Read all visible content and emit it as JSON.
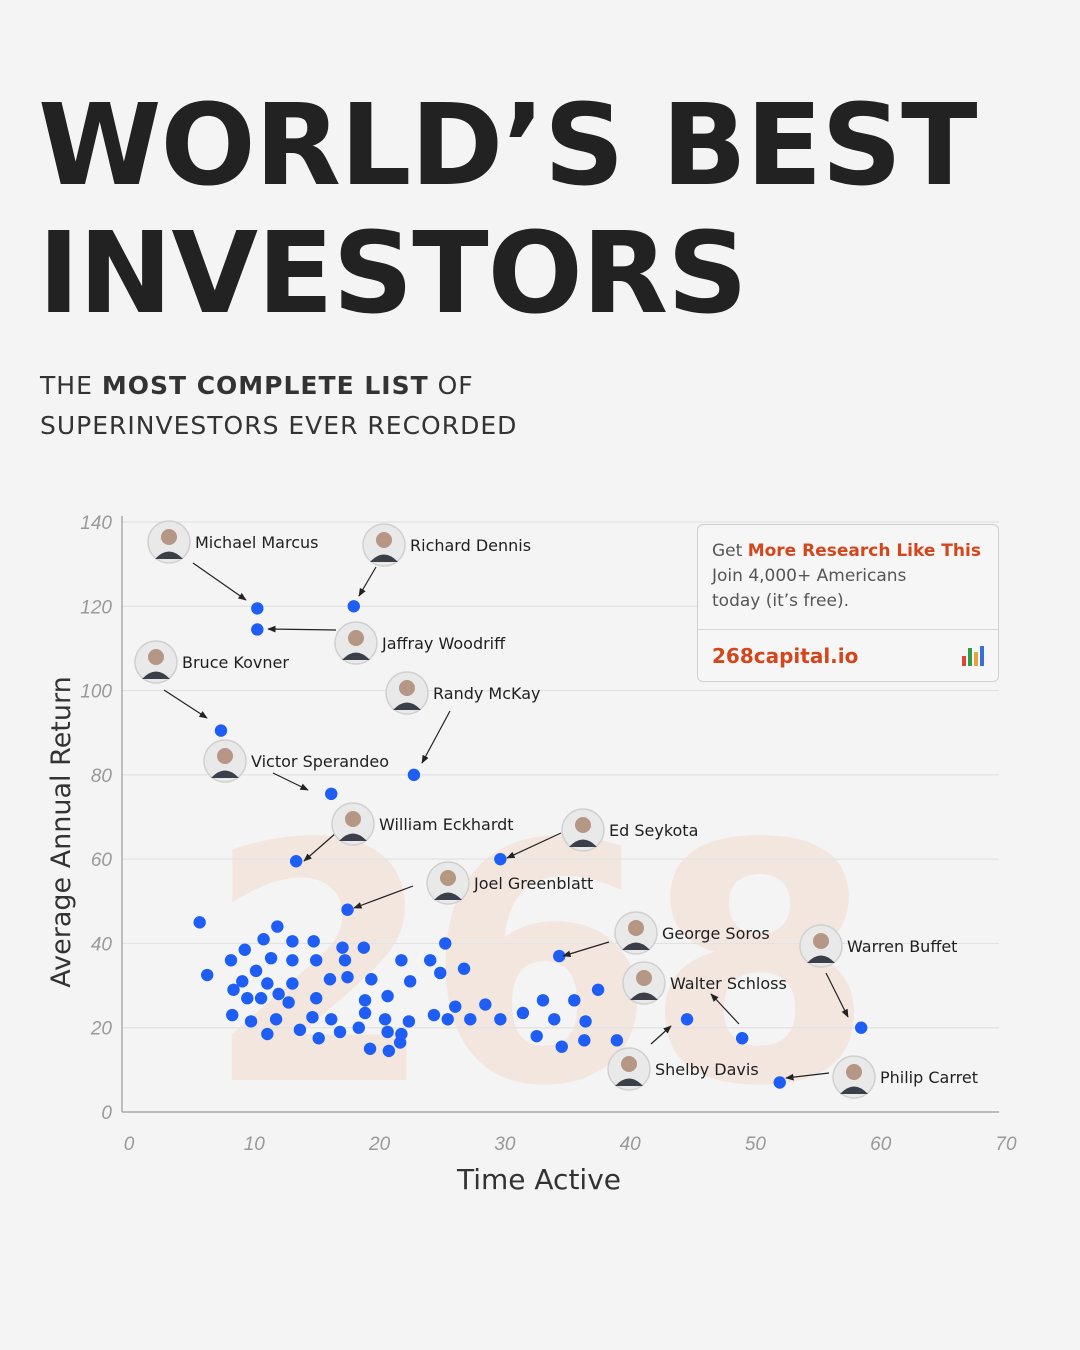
{
  "header": {
    "title_line1": "WORLD’S BEST",
    "title_line2": "INVESTORS",
    "subtitle_pre": "THE ",
    "subtitle_bold": "MOST COMPLETE LIST",
    "subtitle_post": " OF",
    "subtitle_line2": "SUPERINVESTORS EVER RECORDED"
  },
  "cta": {
    "get": "Get ",
    "highlight": "More Research Like This",
    "join": "Join 4,000+ Americans",
    "today": "today (it’s free).",
    "link": "268capital.io",
    "icon": "bar-chart-icon"
  },
  "watermark": "268",
  "colors": {
    "point": "#1f5ef5",
    "accent": "#d4461b",
    "watermark": "#f3e6df"
  },
  "chart_data": {
    "type": "scatter",
    "xlabel": "Time Active",
    "ylabel": "Average Annual Return",
    "xlim": [
      0,
      70
    ],
    "ylim": [
      0,
      140
    ],
    "xticks": [
      0,
      10,
      20,
      30,
      40,
      50,
      60,
      70
    ],
    "yticks": [
      0,
      20,
      40,
      60,
      80,
      100,
      120,
      140
    ],
    "grid": "horizontal",
    "labeled_points": [
      {
        "name": "Michael Marcus",
        "x": 10.8,
        "y": 119.5
      },
      {
        "name": "Richard Dennis",
        "x": 18.5,
        "y": 120
      },
      {
        "name": "Jaffray Woodriff",
        "x": 10.8,
        "y": 114.5
      },
      {
        "name": "Bruce Kovner",
        "x": 7.9,
        "y": 90.5
      },
      {
        "name": "Randy McKay",
        "x": 23.3,
        "y": 80
      },
      {
        "name": "Victor Sperandeo",
        "x": 16.7,
        "y": 75.5
      },
      {
        "name": "William Eckhardt",
        "x": 13.9,
        "y": 59.5
      },
      {
        "name": "Ed Seykota",
        "x": 30.2,
        "y": 60
      },
      {
        "name": "Joel Greenblatt",
        "x": 18,
        "y": 48
      },
      {
        "name": "George Soros",
        "x": 34.9,
        "y": 37
      },
      {
        "name": "Warren Buffet",
        "x": 59,
        "y": 20
      },
      {
        "name": "Walter Schloss",
        "x": 49.5,
        "y": 17.5
      },
      {
        "name": "Shelby Davis",
        "x": 45.1,
        "y": 22
      },
      {
        "name": "Philip Carret",
        "x": 52.5,
        "y": 7
      }
    ],
    "points": [
      [
        6.2,
        45
      ],
      [
        6.8,
        32.5
      ],
      [
        8.7,
        36
      ],
      [
        9.8,
        38.5
      ],
      [
        11.3,
        41
      ],
      [
        12.4,
        44
      ],
      [
        13.6,
        40.5
      ],
      [
        15.3,
        40.5
      ],
      [
        17.6,
        39
      ],
      [
        19.3,
        39
      ],
      [
        8.9,
        29
      ],
      [
        9.6,
        31
      ],
      [
        10.7,
        33.5
      ],
      [
        11.9,
        36.5
      ],
      [
        11.6,
        30.5
      ],
      [
        13.6,
        36
      ],
      [
        15.5,
        36
      ],
      [
        17.8,
        36
      ],
      [
        22.3,
        36
      ],
      [
        24.6,
        36
      ],
      [
        25.8,
        40
      ],
      [
        8.8,
        23
      ],
      [
        10,
        27
      ],
      [
        11.1,
        27
      ],
      [
        12.5,
        28
      ],
      [
        13.3,
        26
      ],
      [
        13.6,
        30.5
      ],
      [
        15.5,
        27
      ],
      [
        16.6,
        31.5
      ],
      [
        18,
        32
      ],
      [
        19.9,
        31.5
      ],
      [
        21.2,
        27.5
      ],
      [
        19.4,
        26.5
      ],
      [
        23,
        31
      ],
      [
        25.4,
        33
      ],
      [
        27.3,
        34
      ],
      [
        10.3,
        21.5
      ],
      [
        11.6,
        18.5
      ],
      [
        12.3,
        22
      ],
      [
        14.2,
        19.5
      ],
      [
        15.2,
        22.5
      ],
      [
        15.7,
        17.5
      ],
      [
        16.7,
        22
      ],
      [
        17.4,
        19
      ],
      [
        18.9,
        20
      ],
      [
        19.4,
        23.5
      ],
      [
        19.8,
        15
      ],
      [
        21,
        22
      ],
      [
        21.2,
        19
      ],
      [
        22.2,
        16.5
      ],
      [
        22.9,
        21.5
      ],
      [
        24.9,
        23
      ],
      [
        26,
        22
      ],
      [
        26.6,
        25
      ],
      [
        27.8,
        22
      ],
      [
        29,
        25.5
      ],
      [
        30.2,
        22
      ],
      [
        32,
        23.5
      ],
      [
        33.1,
        18
      ],
      [
        33.6,
        26.5
      ],
      [
        34.5,
        22
      ],
      [
        35.1,
        15.5
      ],
      [
        36.1,
        26.5
      ],
      [
        36.9,
        17
      ],
      [
        37,
        21.5
      ],
      [
        38,
        29
      ],
      [
        39.5,
        17
      ],
      [
        22.3,
        18.5
      ],
      [
        21.3,
        14.5
      ]
    ]
  }
}
